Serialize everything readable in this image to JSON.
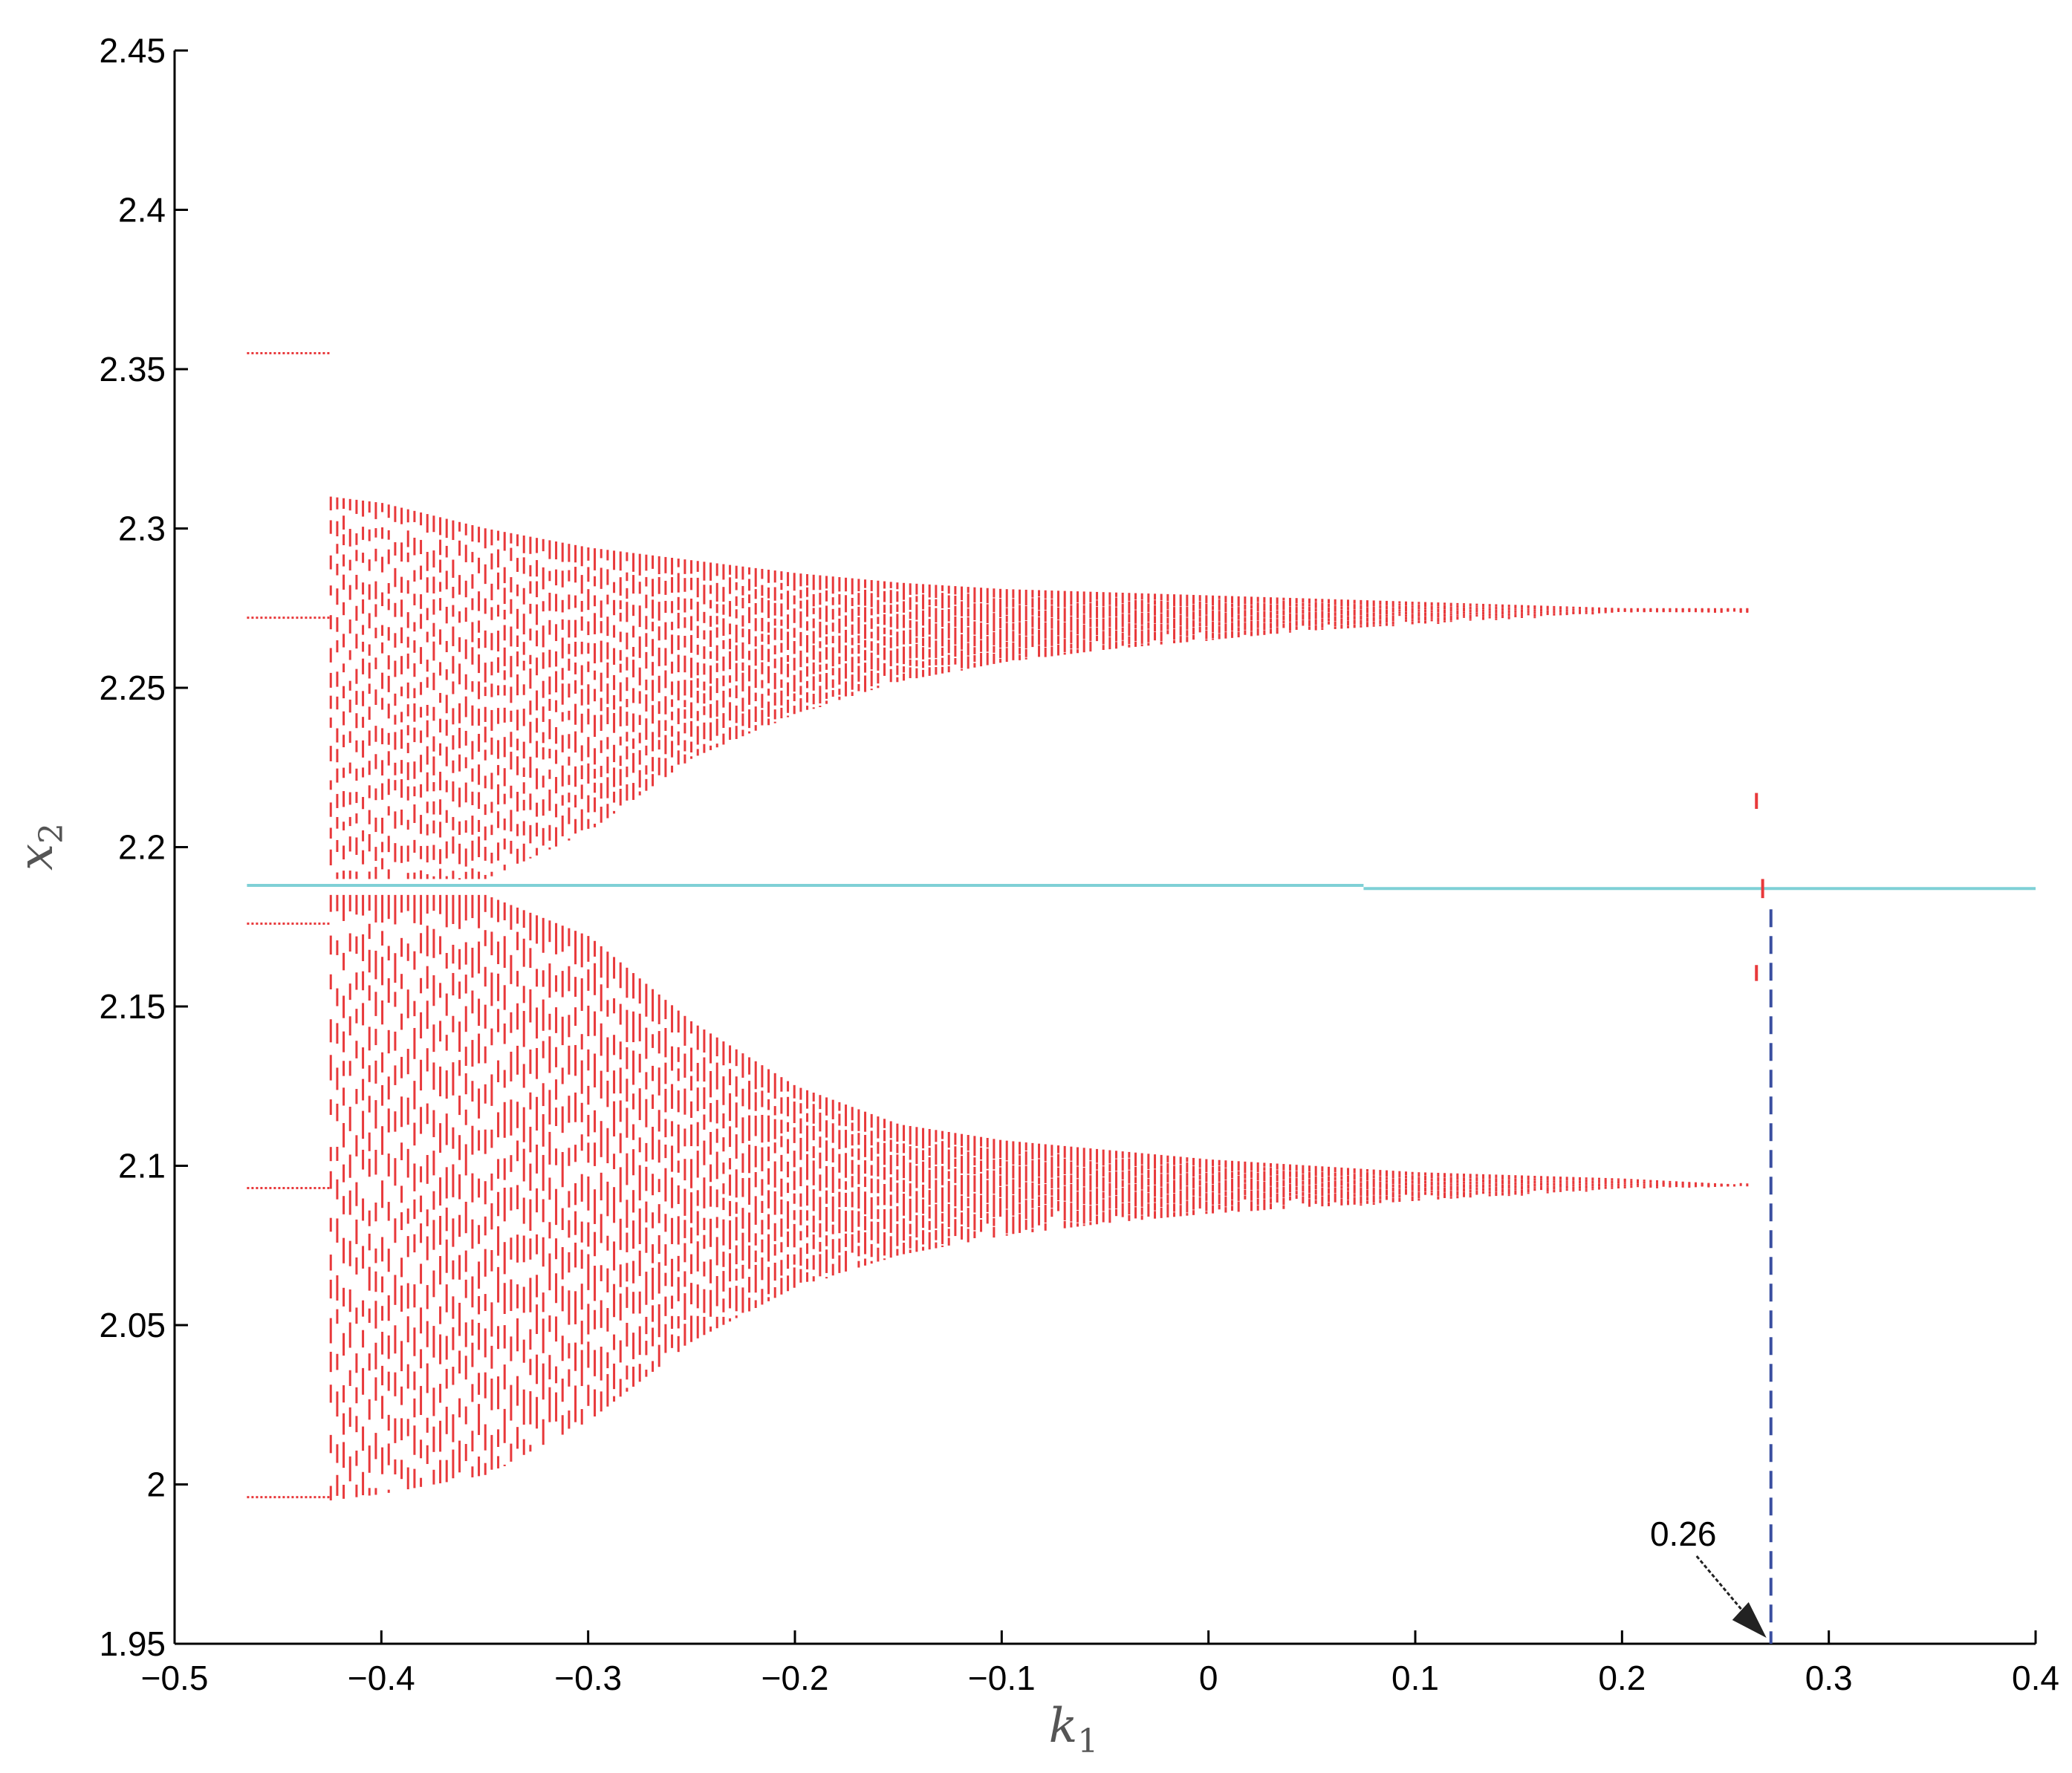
{
  "chart_data": {
    "type": "scatter",
    "title": "",
    "xlabel": "k",
    "xlabel_sub": "1",
    "ylabel": "x",
    "ylabel_sub": "2",
    "xlim": [
      -0.5,
      0.4
    ],
    "ylim": [
      1.95,
      2.45
    ],
    "xticks": [
      -0.5,
      -0.4,
      -0.3,
      -0.2,
      -0.1,
      0,
      0.1,
      0.2,
      0.3,
      0.4
    ],
    "xtick_labels": [
      "−0.5",
      "−0.4",
      "−0.3",
      "−0.2",
      "−0.1",
      "0",
      "0.1",
      "0.2",
      "0.3",
      "0.4"
    ],
    "yticks": [
      1.95,
      2.0,
      2.05,
      2.1,
      2.15,
      2.2,
      2.25,
      2.3,
      2.35,
      2.4,
      2.45
    ],
    "ytick_labels": [
      "1.95",
      "2",
      "2.05",
      "2.1",
      "2.15",
      "2.2",
      "2.25",
      "2.3",
      "2.35",
      "2.4",
      "2.45"
    ],
    "grid": false,
    "colors": {
      "bifurcation": "#e8393b",
      "equilibrium": "#7fd0d6",
      "marker": "#3a4fa0",
      "axis": "#000000"
    },
    "series": [
      {
        "role": "period-4 orbit branches",
        "x_range": [
          -0.465,
          -0.425
        ],
        "levels": [
          2.355,
          2.272,
          2.176,
          2.093,
          1.996
        ]
      },
      {
        "role": "chaotic band upper",
        "envelope_x": [
          -0.425,
          -0.4,
          -0.35,
          -0.3,
          -0.25,
          -0.2,
          -0.15,
          -0.1,
          -0.05,
          0,
          0.05,
          0.1,
          0.15,
          0.2,
          0.26
        ],
        "envelope_top": [
          2.31,
          2.308,
          2.3,
          2.294,
          2.29,
          2.286,
          2.283,
          2.281,
          2.28,
          2.279,
          2.278,
          2.277,
          2.276,
          2.275,
          2.275
        ],
        "envelope_bottom": [
          2.19,
          2.19,
          2.19,
          2.205,
          2.228,
          2.242,
          2.252,
          2.258,
          2.262,
          2.265,
          2.268,
          2.27,
          2.272,
          2.274,
          2.274
        ]
      },
      {
        "role": "chaotic band lower",
        "envelope_x": [
          -0.425,
          -0.4,
          -0.35,
          -0.3,
          -0.25,
          -0.2,
          -0.15,
          -0.1,
          -0.05,
          0,
          0.05,
          0.1,
          0.15,
          0.2,
          0.26
        ],
        "envelope_top": [
          2.185,
          2.185,
          2.185,
          2.172,
          2.145,
          2.125,
          2.113,
          2.108,
          2.105,
          2.102,
          2.1,
          2.098,
          2.097,
          2.096,
          2.094
        ],
        "envelope_bottom": [
          1.995,
          1.997,
          2.003,
          2.02,
          2.045,
          2.062,
          2.072,
          2.078,
          2.082,
          2.085,
          2.087,
          2.089,
          2.091,
          2.093,
          2.094
        ]
      },
      {
        "role": "equilibrium",
        "segments": [
          {
            "x": [
              -0.465,
              0.075
            ],
            "y": 2.188
          },
          {
            "x": [
              0.075,
              0.4
            ],
            "y": 2.187
          }
        ]
      },
      {
        "role": "transition points",
        "points": [
          {
            "x": 0.265,
            "y": [
              2.212,
              2.217
            ]
          },
          {
            "x": 0.265,
            "y": [
              2.158,
              2.163
            ]
          },
          {
            "x": 0.268,
            "y": [
              2.184,
              2.19
            ]
          }
        ]
      }
    ],
    "annotations": [
      {
        "text": "0.26",
        "x": 0.272,
        "y_from": 2.187,
        "y_to": 1.95
      }
    ]
  }
}
